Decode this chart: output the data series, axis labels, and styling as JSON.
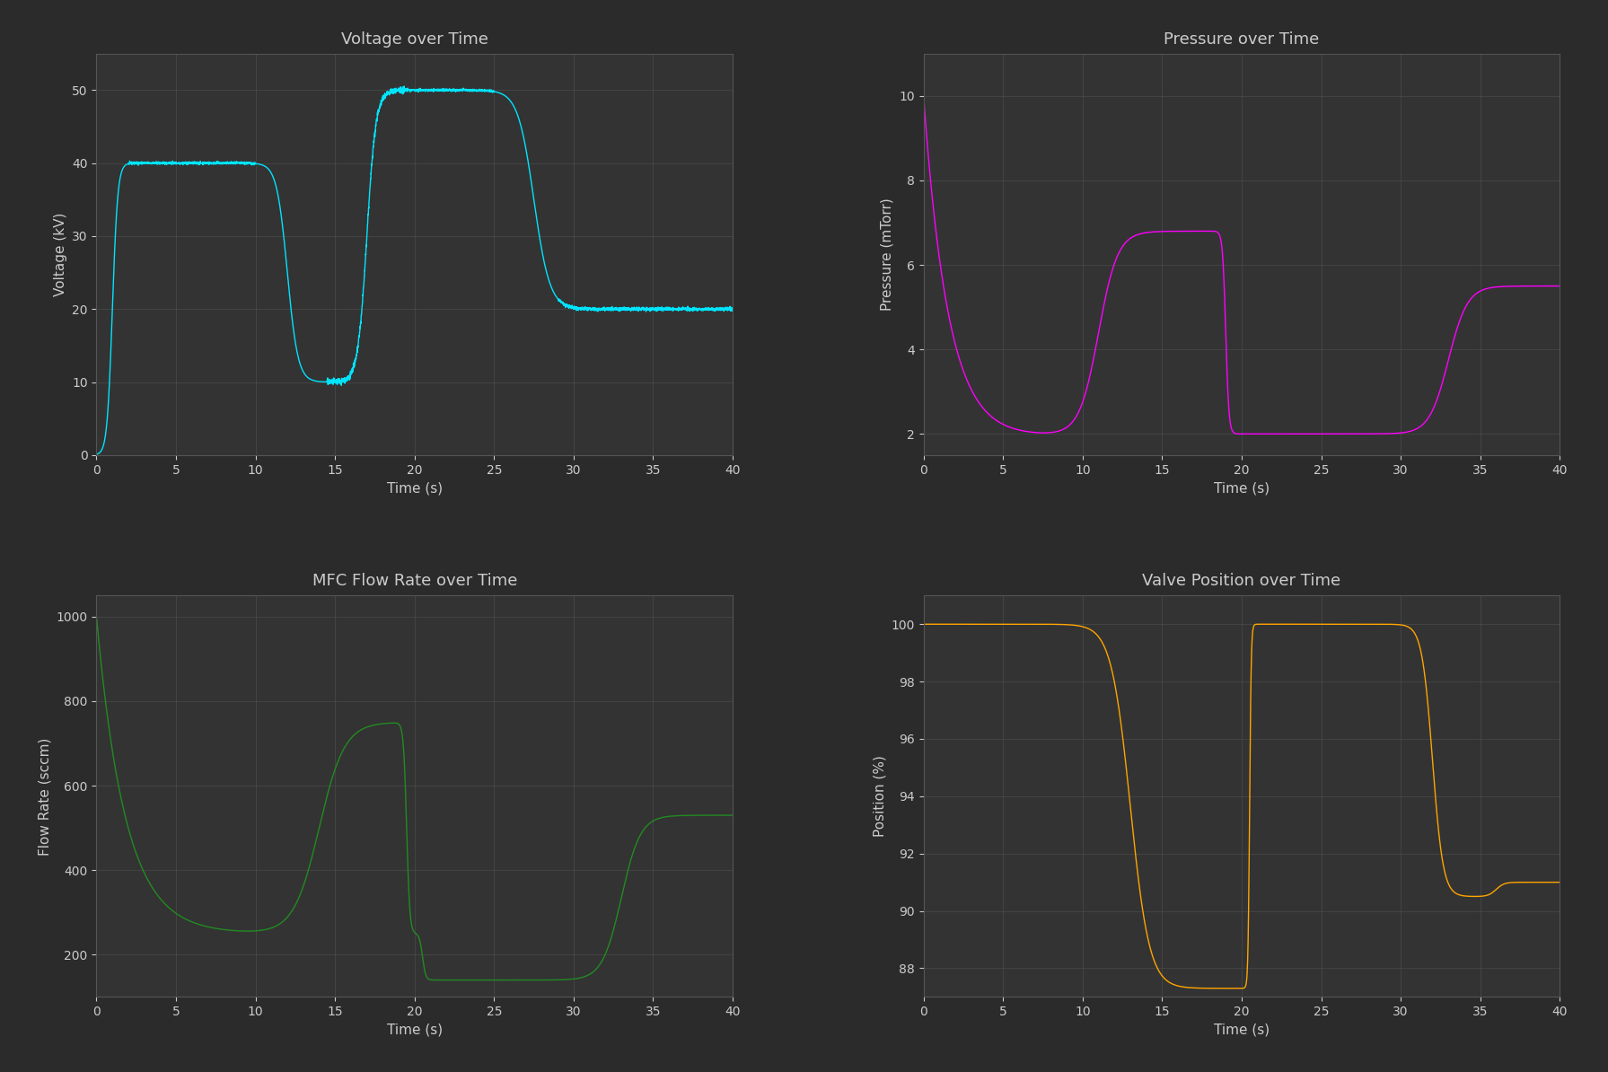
{
  "background_color": "#2b2b2b",
  "axes_background": "#333333",
  "grid_color": "#555555",
  "text_color": "#cccccc",
  "title_fontsize": 13,
  "label_fontsize": 11,
  "tick_fontsize": 10,
  "voltage": {
    "title": "Voltage over Time",
    "ylabel": "Voltage (kV)",
    "xlabel": "Time (s)",
    "color": "#00e5ff",
    "xlim": [
      0,
      40
    ],
    "ylim": [
      0,
      55
    ],
    "yticks": [
      0,
      10,
      20,
      30,
      40,
      50
    ]
  },
  "pressure": {
    "title": "Pressure over Time",
    "ylabel": "Pressure (mTorr)",
    "xlabel": "Time (s)",
    "color": "#ff00ff",
    "xlim": [
      0,
      40
    ],
    "ylim": [
      1.5,
      11
    ],
    "yticks": [
      2,
      4,
      6,
      8,
      10
    ]
  },
  "flow": {
    "title": "MFC Flow Rate over Time",
    "ylabel": "Flow Rate (sccm)",
    "xlabel": "Time (s)",
    "color": "#228B22",
    "xlim": [
      0,
      40
    ],
    "ylim": [
      100,
      1050
    ],
    "yticks": [
      200,
      400,
      600,
      800,
      1000
    ]
  },
  "valve": {
    "title": "Valve Position over Time",
    "ylabel": "Position (%)",
    "xlabel": "Time (s)",
    "color": "#FFA500",
    "xlim": [
      0,
      40
    ],
    "ylim": [
      87,
      101
    ],
    "yticks": [
      88,
      90,
      92,
      94,
      96,
      98,
      100
    ]
  }
}
